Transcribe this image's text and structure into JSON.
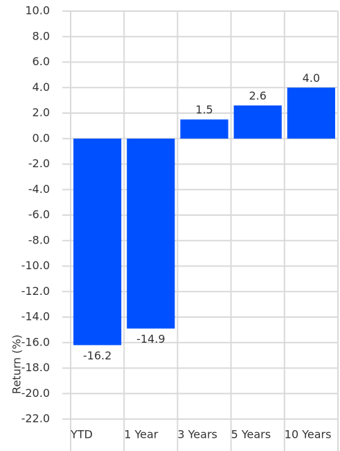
{
  "chart_data": {
    "type": "bar",
    "y_label": "Return (%)",
    "categories": [
      "YTD",
      "1 Year",
      "3 Years",
      "5 Years",
      "10 Years"
    ],
    "values": [
      -16.2,
      -14.9,
      1.5,
      2.6,
      4.0
    ],
    "value_labels": [
      "-16.2",
      "-14.9",
      "1.5",
      "2.6",
      "4.0"
    ],
    "color": "#0050ff",
    "ylim": [
      -22,
      10
    ],
    "yticks": [
      {
        "value": 10,
        "label": "10.0"
      },
      {
        "value": 8,
        "label": "8.0"
      },
      {
        "value": 6,
        "label": "6.0"
      },
      {
        "value": 4,
        "label": "4.0"
      },
      {
        "value": 2,
        "label": "2.0"
      },
      {
        "value": 0,
        "label": "0.0"
      },
      {
        "value": -2,
        "label": "-2.0"
      },
      {
        "value": -4,
        "label": "-4.0"
      },
      {
        "value": -6,
        "label": "-6.0"
      },
      {
        "value": -8,
        "label": "-8.0"
      },
      {
        "value": -10,
        "label": "-10.0"
      },
      {
        "value": -12,
        "label": "-12.0"
      },
      {
        "value": -14,
        "label": "-14.0"
      },
      {
        "value": -16,
        "label": "-16.0"
      },
      {
        "value": -18,
        "label": "-18.0"
      },
      {
        "value": -20,
        "label": "-20.0"
      },
      {
        "value": -22,
        "label": "-22.0"
      }
    ],
    "grid": true
  }
}
